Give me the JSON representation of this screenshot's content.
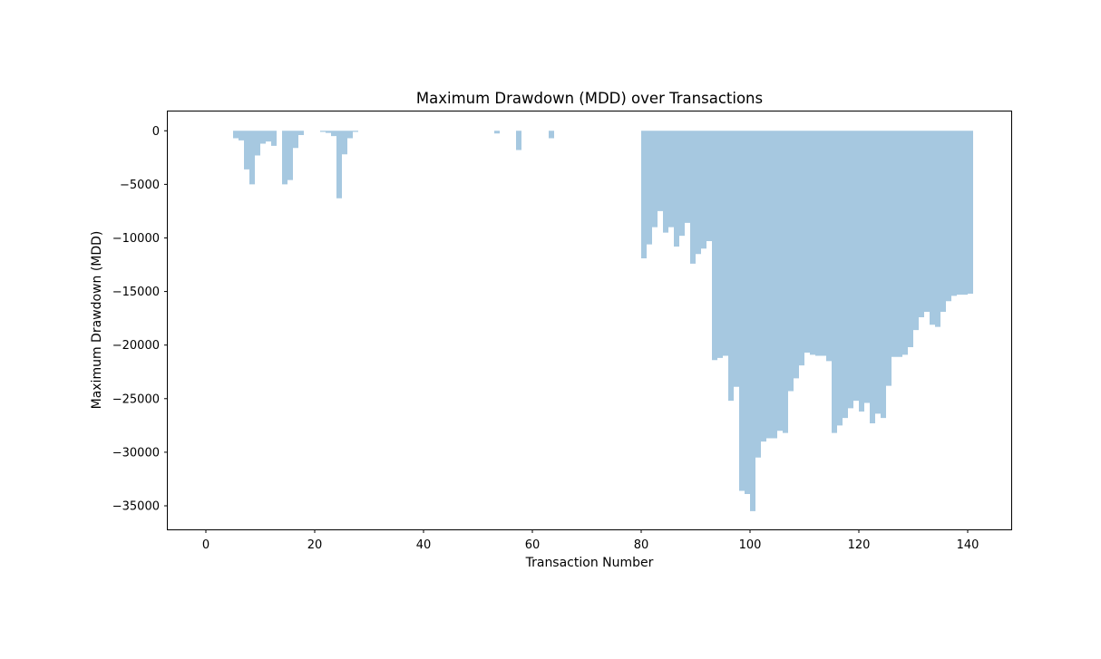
{
  "chart_data": {
    "type": "area",
    "title": "Maximum Drawdown (MDD) over Transactions",
    "xlabel": "Transaction Number",
    "ylabel": "Maximum Drawdown (MDD)",
    "xlim": [
      -7,
      148
    ],
    "ylim": [
      -37200,
      1800
    ],
    "xticks": [
      0,
      20,
      40,
      60,
      80,
      100,
      120,
      140
    ],
    "yticks": [
      0,
      -5000,
      -10000,
      -15000,
      -20000,
      -25000,
      -30000,
      -35000
    ],
    "grid": false,
    "legend": "none",
    "fill_color": "#a6c8e0",
    "step": "post",
    "series": [
      {
        "x": [
          0,
          1,
          2,
          3,
          4,
          5,
          6,
          7,
          8,
          9,
          10,
          11,
          12,
          13,
          14,
          15,
          16,
          17,
          18,
          19,
          20,
          21,
          22,
          23,
          24,
          25,
          26,
          27,
          28,
          29,
          30,
          31,
          32,
          33,
          34,
          35,
          36,
          37,
          38,
          39,
          40,
          41,
          42,
          43,
          44,
          45,
          46,
          47,
          48,
          49,
          50,
          51,
          52,
          53,
          54,
          55,
          56,
          57,
          58,
          59,
          60,
          61,
          62,
          63,
          64,
          65,
          66,
          67,
          68,
          69,
          70,
          71,
          72,
          73,
          74,
          75,
          76,
          77,
          78,
          79,
          80,
          81,
          82,
          83,
          84,
          85,
          86,
          87,
          88,
          89,
          90,
          91,
          92,
          93,
          94,
          95,
          96,
          97,
          98,
          99,
          100,
          101,
          102,
          103,
          104,
          105,
          106,
          107,
          108,
          109,
          110,
          111,
          112,
          113,
          114,
          115,
          116,
          117,
          118,
          119,
          120,
          121,
          122,
          123,
          124,
          125,
          126,
          127,
          128,
          129,
          130,
          131,
          132,
          133,
          134,
          135,
          136,
          137,
          138,
          139,
          140,
          141
        ],
        "values": [
          0,
          0,
          0,
          0,
          0,
          -700,
          -900,
          -3600,
          -5000,
          -2300,
          -1200,
          -1000,
          -1400,
          0,
          -5000,
          -4600,
          -1600,
          -400,
          0,
          0,
          0,
          -100,
          -200,
          -500,
          -6300,
          -2200,
          -700,
          -100,
          0,
          0,
          0,
          0,
          0,
          0,
          0,
          0,
          0,
          0,
          0,
          0,
          0,
          0,
          0,
          0,
          0,
          0,
          0,
          0,
          0,
          0,
          0,
          0,
          0,
          -250,
          0,
          0,
          0,
          -1800,
          0,
          0,
          0,
          0,
          0,
          -700,
          0,
          0,
          0,
          0,
          0,
          0,
          0,
          0,
          0,
          0,
          0,
          0,
          0,
          0,
          0,
          0,
          -11900,
          -10600,
          -9000,
          -7500,
          -9500,
          -9000,
          -10800,
          -9800,
          -8600,
          -12400,
          -11500,
          -11000,
          -10300,
          -21400,
          -21200,
          -21000,
          -25200,
          -23900,
          -33600,
          -33900,
          -35500,
          -30500,
          -29000,
          -28700,
          -28700,
          -28000,
          -28200,
          -24300,
          -23100,
          -21900,
          -20700,
          -20900,
          -21000,
          -21000,
          -21500,
          -28200,
          -27500,
          -26800,
          -25900,
          -25200,
          -26200,
          -25400,
          -27300,
          -26400,
          -26800,
          -23800,
          -21100,
          -21100,
          -20900,
          -20200,
          -18600,
          -17400,
          -16900,
          -18100,
          -18300,
          -16900,
          -15900,
          -15400,
          -15300,
          -15300,
          -15200,
          -14600
        ]
      }
    ]
  }
}
